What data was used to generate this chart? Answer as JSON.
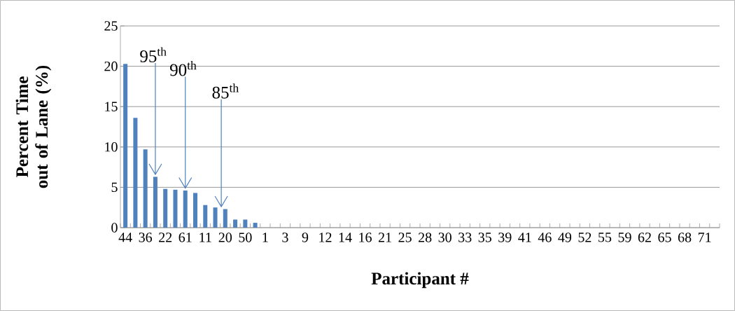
{
  "chart_data": {
    "type": "bar",
    "xlabel": "Participant #",
    "ylabel": "Percent Time out of Lane (%)",
    "categories": [
      "44",
      null,
      "36",
      null,
      "22",
      null,
      "61",
      null,
      "11",
      null,
      "20",
      null,
      "50",
      null,
      "1",
      null,
      "3",
      null,
      "9",
      null,
      "12",
      null,
      "14",
      null,
      "16",
      null,
      "21",
      null,
      "25",
      null,
      "28",
      null,
      "30",
      null,
      "33",
      null,
      "35",
      null,
      "39",
      null,
      "41",
      null,
      "46",
      null,
      "49",
      null,
      "52",
      null,
      "55",
      null,
      "59",
      null,
      "62",
      null,
      "65",
      null,
      "68",
      null,
      "71",
      null
    ],
    "values": [
      20.3,
      13.6,
      9.7,
      6.3,
      4.8,
      4.7,
      4.6,
      4.3,
      2.8,
      2.5,
      2.3,
      1.0,
      1.0,
      0.6,
      0,
      0,
      0,
      0,
      0,
      0,
      0,
      0,
      0,
      0,
      0,
      0,
      0,
      0,
      0,
      0,
      0,
      0,
      0,
      0,
      0,
      0,
      0,
      0,
      0,
      0,
      0,
      0,
      0,
      0,
      0,
      0,
      0,
      0,
      0,
      0,
      0,
      0,
      0,
      0,
      0,
      0,
      0,
      0,
      0,
      0
    ],
    "color": "#4f81bd",
    "ylim": [
      0,
      25
    ],
    "yticks": [
      0,
      5,
      10,
      15,
      20,
      25
    ],
    "grid": "y",
    "annotations": [
      {
        "text": "95$^{th}$",
        "y": 6.6
      },
      {
        "text": "90$^{th}$",
        "y": 4.9
      },
      {
        "text": "85$^{th}$",
        "y": 2.6
      }
    ]
  }
}
